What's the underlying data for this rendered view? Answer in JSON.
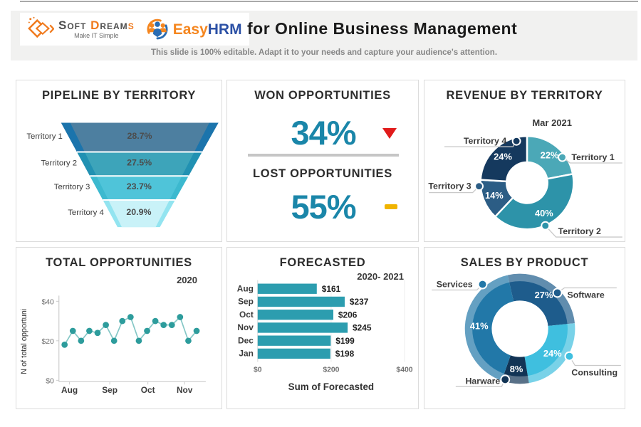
{
  "header": {
    "logo_soft": {
      "part1": "Soft ",
      "part2": "D",
      "part3": "ream",
      "part4": "s",
      "tagline": "Make IT Simple",
      "accent_color": "#f07a1d"
    },
    "logo_easyhrm": {
      "easy": "Easy",
      "hrm": "HRM",
      "easy_color": "#f5861f",
      "hrm_color": "#2b50a5"
    },
    "title": "for Online Business Management",
    "subtitle": "This slide is 100% editable. Adapt it to your needs and capture your audience's attention."
  },
  "panels": {
    "pipeline": {
      "title": "PIPELINE BY TERRITORY"
    },
    "opportunities": {
      "won_title": "WON OPPORTUNITIES",
      "won_value": "34%",
      "lost_title": "LOST OPPORTUNITIES",
      "lost_value": "55%",
      "value_color": "#1a86a9",
      "won_indicator_color": "#e11b1b",
      "lost_indicator_color": "#f0b400"
    },
    "revenue": {
      "title": "REVENUE BY TERRITORY",
      "period": "Mar 2021"
    },
    "total": {
      "title": "TOTAL OPPORTUNITIES",
      "period": "2020"
    },
    "forecasted": {
      "title": "FORECASTED",
      "period": "2020- 2021"
    },
    "sales": {
      "title": "SALES BY PRODUCT"
    }
  },
  "chart_data": [
    {
      "id": "pipeline_funnel",
      "type": "funnel",
      "title": "PIPELINE BY TERRITORY",
      "categories": [
        "Territory 1",
        "Territory 2",
        "Territory 3",
        "Territory 4"
      ],
      "values": [
        28.7,
        27.5,
        23.7,
        20.9
      ],
      "value_labels": [
        "28.7%",
        "27.5%",
        "23.7%",
        "20.9%"
      ],
      "colors": [
        "#4d7fa0",
        "#3da4ba",
        "#4fc4d9",
        "#c9f2f8"
      ],
      "edge_colors": [
        "#1b74ac",
        "#2191b2",
        "#3cb9cf",
        "#93e4f0"
      ]
    },
    {
      "id": "revenue_donut",
      "type": "pie",
      "subtype": "donut",
      "title": "REVENUE BY TERRITORY",
      "period": "Mar 2021",
      "labels": [
        "Territory 1",
        "Territory 2",
        "Territory 3",
        "Territory 4"
      ],
      "values": [
        22,
        40,
        14,
        24
      ],
      "colors": [
        "#4ba8b7",
        "#2d93a9",
        "#2c5d85",
        "#15395e"
      ],
      "start_angle": 0
    },
    {
      "id": "total_line",
      "type": "line",
      "title": "TOTAL OPPORTUNITIES",
      "period": "2020",
      "ylabel": "N of total opportuni",
      "y_ticks": [
        "$0",
        "$20",
        "$40"
      ],
      "ylim": [
        0,
        40
      ],
      "x_ticks": [
        "Aug",
        "Sep",
        "Oct",
        "Nov"
      ],
      "values": [
        18,
        25,
        20,
        25,
        24,
        28,
        20,
        30,
        32,
        20,
        25,
        30,
        28,
        28,
        32,
        20,
        25
      ],
      "line_color": "#85c7c6",
      "dot_color": "#2d9c9c"
    },
    {
      "id": "forecast_bar",
      "type": "bar",
      "orientation": "horizontal",
      "title": "FORECASTED",
      "period": "2020- 2021",
      "categories": [
        "Aug",
        "Sep",
        "Oct",
        "Nov",
        "Dec",
        "Jan"
      ],
      "values": [
        161,
        237,
        206,
        245,
        199,
        198
      ],
      "value_labels": [
        "$161",
        "$237",
        "$206",
        "$245",
        "$199",
        "$198"
      ],
      "x_ticks": [
        "$0",
        "$200",
        "$400"
      ],
      "xlim": [
        0,
        400
      ],
      "xlabel": "Sum of Forecasted",
      "bar_color": "#2c9daf"
    },
    {
      "id": "sales_donut",
      "type": "pie",
      "subtype": "donut",
      "title": "SALES BY PRODUCT",
      "labels": [
        "Software",
        "Consulting",
        "Harware",
        "Services"
      ],
      "values": [
        27,
        24,
        8,
        41
      ],
      "colors": [
        "#1e5c8c",
        "#3fbfdf",
        "#123455",
        "#2278a8"
      ],
      "start_angle": -13
    }
  ]
}
